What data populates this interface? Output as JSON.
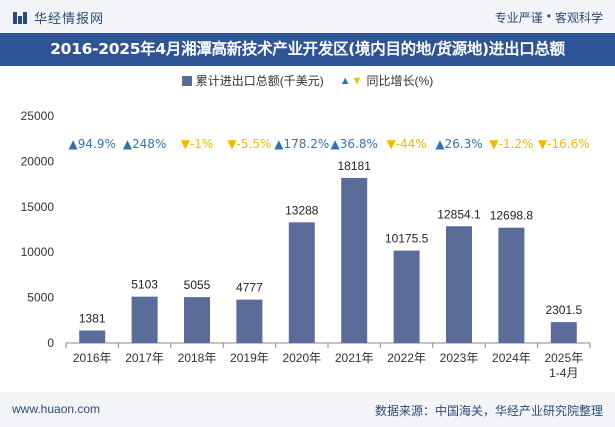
{
  "header": {
    "brand": "华经情报网",
    "tags": [
      "专业严谨",
      "客观科学"
    ],
    "title": "2016-2025年4月湘潭高新技术产业开发区(境内目的地/货源地)进出口总额"
  },
  "legend": {
    "bar_label": "累计进出口总额(千美元)",
    "growth_label": "同比增长(%)"
  },
  "footer": {
    "website": "www.huaon.com",
    "source": "数据来源：中国海关，华经产业研究院整理"
  },
  "colors": {
    "bar": "#5b6b9a",
    "up": "#2e75b6",
    "down": "#f5b800",
    "title_bg": "#2f5496"
  },
  "chart_data": {
    "type": "bar",
    "categories": [
      "2016年",
      "2017年",
      "2018年",
      "2019年",
      "2020年",
      "2021年",
      "2022年",
      "2023年",
      "2024年",
      "2025年\n1-4月"
    ],
    "values": [
      1381,
      5103,
      5055,
      4777,
      13288,
      18181,
      10175.5,
      12854.1,
      12698.8,
      2301.5
    ],
    "value_labels": [
      "1381",
      "5103",
      "5055",
      "4777",
      "13288",
      "18181",
      "10175.5",
      "12854.1",
      "12698.8",
      "2301.5"
    ],
    "growth": [
      94.9,
      248,
      -1,
      -5.5,
      178.2,
      36.8,
      -44,
      26.3,
      -1.2,
      -16.6
    ],
    "growth_labels": [
      "94.9%",
      "248%",
      "-1%",
      "-5.5%",
      "178.2%",
      "36.8%",
      "-44%",
      "26.3%",
      "-1.2%",
      "-16.6%"
    ],
    "yticks": [
      0,
      5000,
      10000,
      15000,
      20000,
      25000
    ],
    "ylim": [
      0,
      25000
    ],
    "grid": false,
    "legend_position": "top"
  }
}
